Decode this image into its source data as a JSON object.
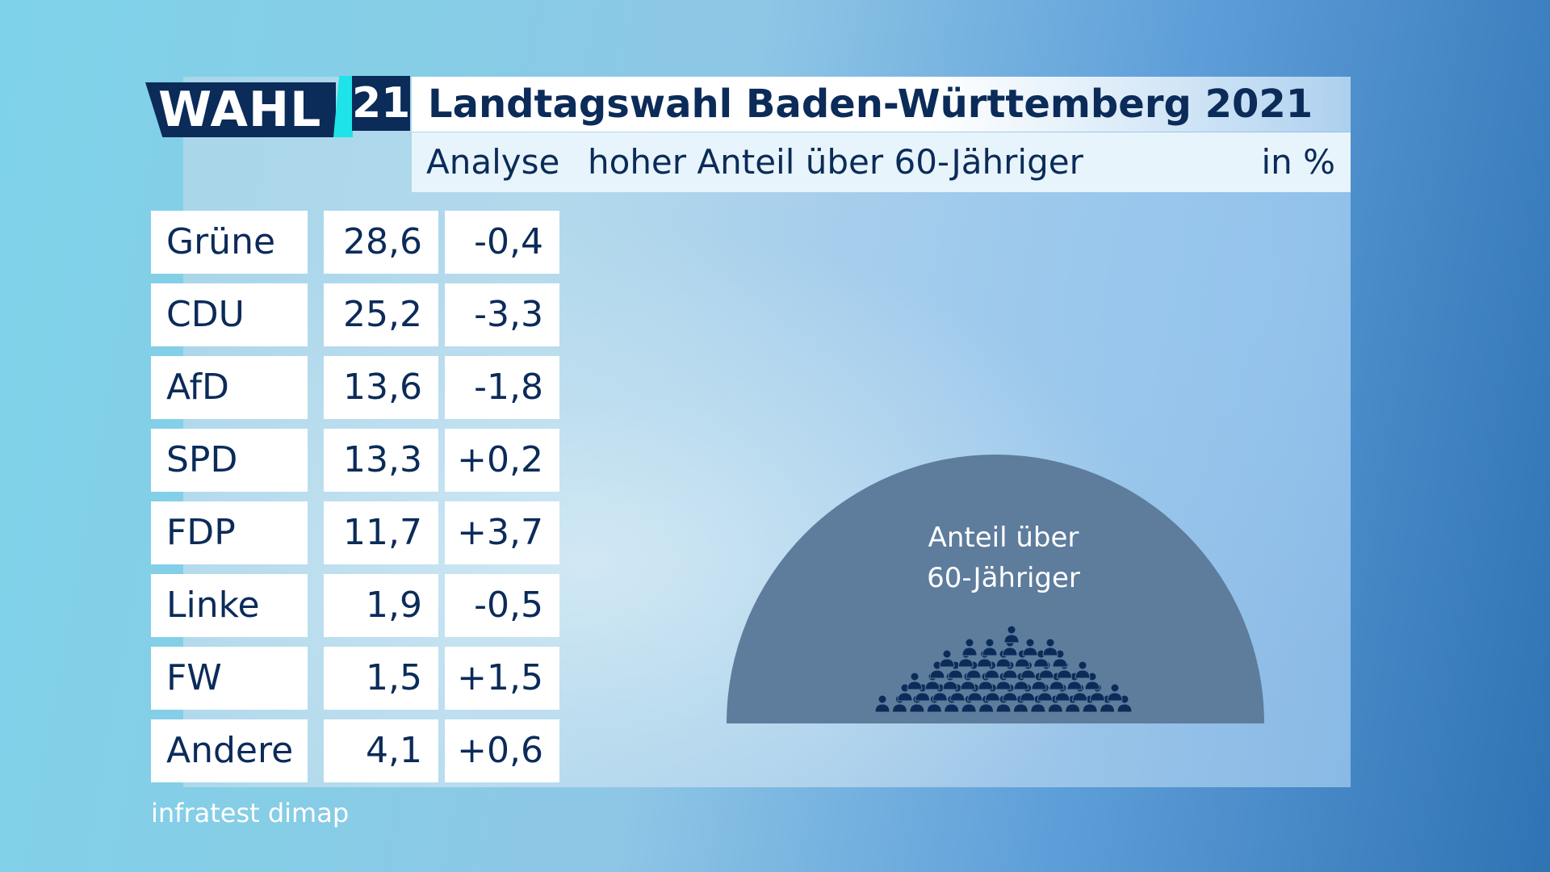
{
  "logo": {
    "wahl": "WAHL",
    "year": "21"
  },
  "header": {
    "title": "Landtagswahl Baden-Württemberg 2021",
    "subtitle_label": "Analyse",
    "subtitle": "hoher Anteil über 60-Jähriger",
    "unit": "in %"
  },
  "chart_data": {
    "type": "table",
    "columns": [
      "party",
      "value",
      "change"
    ],
    "rows": [
      {
        "party": "Grüne",
        "value": "28,6",
        "change": "-0,4"
      },
      {
        "party": "CDU",
        "value": "25,2",
        "change": "-3,3"
      },
      {
        "party": "AfD",
        "value": "13,6",
        "change": "-1,8"
      },
      {
        "party": "SPD",
        "value": "13,3",
        "change": "+0,2"
      },
      {
        "party": "FDP",
        "value": "11,7",
        "change": "+3,7"
      },
      {
        "party": "Linke",
        "value": "1,9",
        "change": "-0,5"
      },
      {
        "party": "FW",
        "value": "1,5",
        "change": "+1,5"
      },
      {
        "party": "Andere",
        "value": "4,1",
        "change": "+0,6"
      }
    ]
  },
  "illustration": {
    "label_line1": "Anteil über",
    "label_line2": "60-Jähriger",
    "icon": "people-crowd-icon",
    "dome_color": "#5e7c9c",
    "people_color": "#0b2b59"
  },
  "source": "infratest dimap",
  "colors": {
    "navy": "#0b2b59",
    "cyan": "#1ee3e8"
  }
}
